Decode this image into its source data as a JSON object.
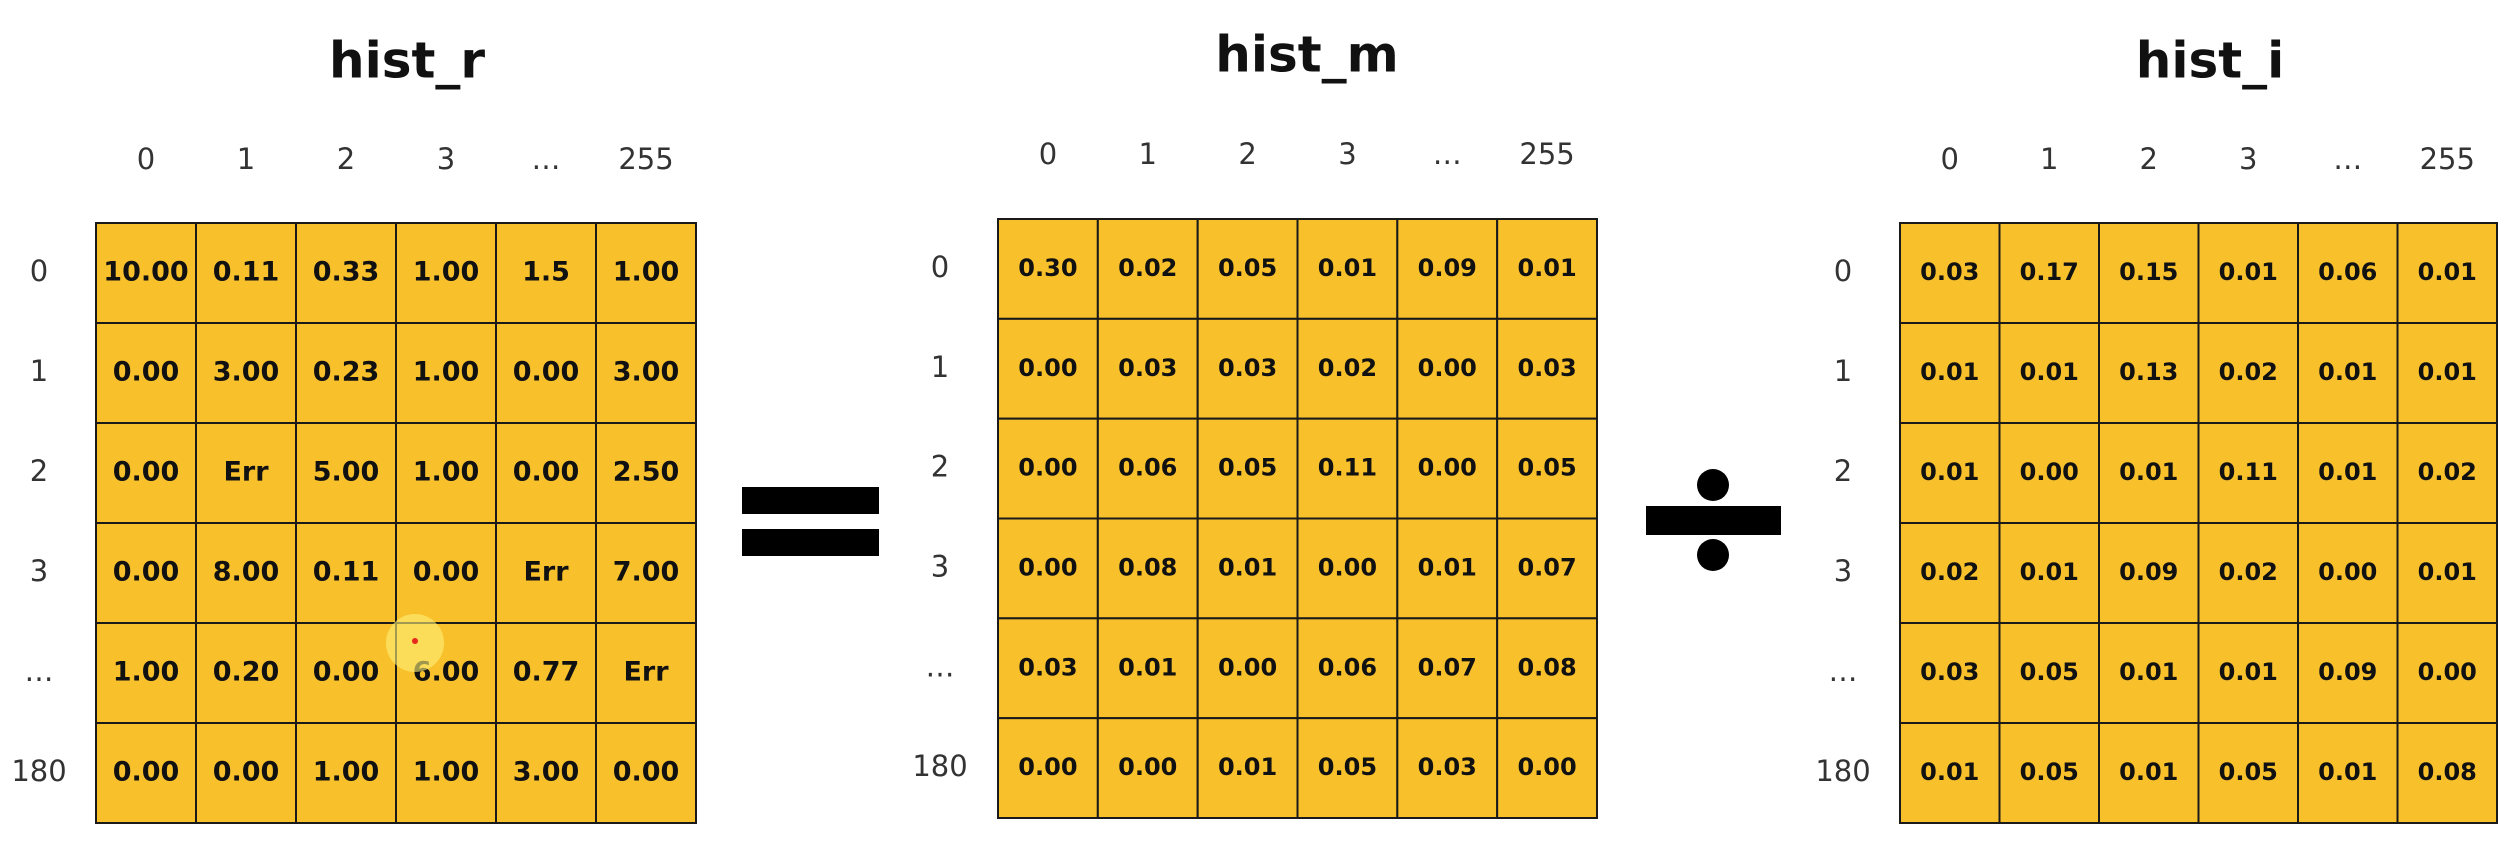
{
  "tables": [
    {
      "title": "hist_r",
      "columns": [
        "0",
        "1",
        "2",
        "3",
        "…",
        "255"
      ],
      "rows": [
        {
          "label": "0",
          "cells": [
            "10.00",
            "0.11",
            "0.33",
            "1.00",
            "1.5",
            "1.00"
          ]
        },
        {
          "label": "1",
          "cells": [
            "0.00",
            "3.00",
            "0.23",
            "1.00",
            "0.00",
            "3.00"
          ]
        },
        {
          "label": "2",
          "cells": [
            "0.00",
            "Err",
            "5.00",
            "1.00",
            "0.00",
            "2.50"
          ]
        },
        {
          "label": "3",
          "cells": [
            "0.00",
            "8.00",
            "0.11",
            "0.00",
            "Err",
            "7.00"
          ]
        },
        {
          "label": "…",
          "cells": [
            "1.00",
            "0.20",
            "0.00",
            "6.00",
            "0.77",
            "Err"
          ]
        },
        {
          "label": "180",
          "cells": [
            "0.00",
            "0.00",
            "1.00",
            "1.00",
            "3.00",
            "0.00"
          ]
        }
      ]
    },
    {
      "title": "hist_m",
      "columns": [
        "0",
        "1",
        "2",
        "3",
        "…",
        "255"
      ],
      "rows": [
        {
          "label": "0",
          "cells": [
            "0.30",
            "0.02",
            "0.05",
            "0.01",
            "0.09",
            "0.01"
          ]
        },
        {
          "label": "1",
          "cells": [
            "0.00",
            "0.03",
            "0.03",
            "0.02",
            "0.00",
            "0.03"
          ]
        },
        {
          "label": "2",
          "cells": [
            "0.00",
            "0.06",
            "0.05",
            "0.11",
            "0.00",
            "0.05"
          ]
        },
        {
          "label": "3",
          "cells": [
            "0.00",
            "0.08",
            "0.01",
            "0.00",
            "0.01",
            "0.07"
          ]
        },
        {
          "label": "…",
          "cells": [
            "0.03",
            "0.01",
            "0.00",
            "0.06",
            "0.07",
            "0.08"
          ]
        },
        {
          "label": "180",
          "cells": [
            "0.00",
            "0.00",
            "0.01",
            "0.05",
            "0.03",
            "0.00"
          ]
        }
      ]
    },
    {
      "title": "hist_i",
      "columns": [
        "0",
        "1",
        "2",
        "3",
        "…",
        "255"
      ],
      "rows": [
        {
          "label": "0",
          "cells": [
            "0.03",
            "0.17",
            "0.15",
            "0.01",
            "0.06",
            "0.01"
          ]
        },
        {
          "label": "1",
          "cells": [
            "0.01",
            "0.01",
            "0.13",
            "0.02",
            "0.01",
            "0.01"
          ]
        },
        {
          "label": "2",
          "cells": [
            "0.01",
            "0.00",
            "0.01",
            "0.11",
            "0.01",
            "0.02"
          ]
        },
        {
          "label": "3",
          "cells": [
            "0.02",
            "0.01",
            "0.09",
            "0.02",
            "0.00",
            "0.01"
          ]
        },
        {
          "label": "…",
          "cells": [
            "0.03",
            "0.05",
            "0.01",
            "0.01",
            "0.09",
            "0.00"
          ]
        },
        {
          "label": "180",
          "cells": [
            "0.01",
            "0.05",
            "0.01",
            "0.05",
            "0.01",
            "0.08"
          ]
        }
      ]
    }
  ]
}
